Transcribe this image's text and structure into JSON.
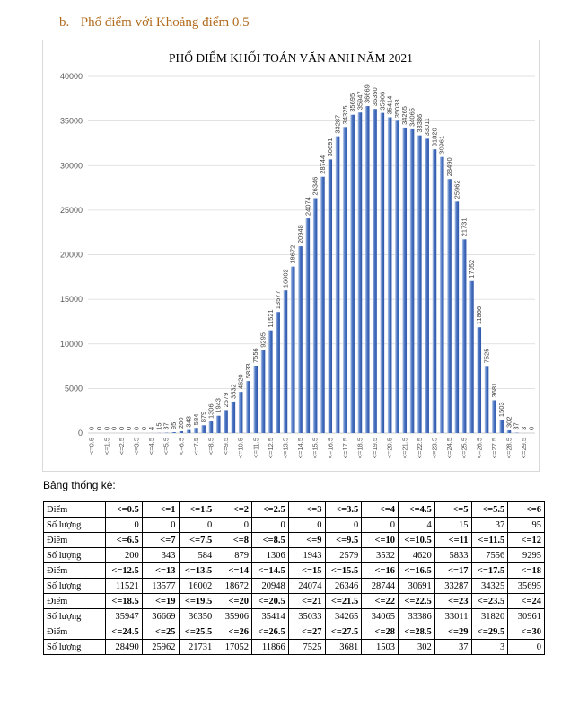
{
  "heading": {
    "number": "b.",
    "text": "Phổ điểm với Khoảng điểm 0.5"
  },
  "colors": {
    "bar": "#4a74c4",
    "bar_light": "#b8cbe8",
    "grid": "#d9d9d9",
    "heading": "#b26a1c"
  },
  "chart_data": {
    "type": "bar",
    "title": "PHỔ ĐIỂM KHỐI TOÁN VĂN ANH  NĂM 2021",
    "xlabel": "",
    "ylabel": "",
    "ylim": [
      0,
      40000
    ],
    "yticks": [
      "0",
      "5000",
      "10000",
      "15000",
      "20000",
      "25000",
      "30000",
      "35000",
      "40000"
    ],
    "categories": [
      "<=0.5",
      "<=1",
      "<=1.5",
      "<=2",
      "<=2.5",
      "<=3",
      "<=3.5",
      "<=4",
      "<=4.5",
      "<=5",
      "<=5.5",
      "<=6",
      "<=6.5",
      "<=7",
      "<=7.5",
      "<=8",
      "<=8.5",
      "<=9",
      "<=9.5",
      "<=10",
      "<=10.5",
      "<=11",
      "<=11.5",
      "<=12",
      "<=12.5",
      "<=13",
      "<=13.5",
      "<=14",
      "<=14.5",
      "<=15",
      "<=15.5",
      "<=16",
      "<=16.5",
      "<=17",
      "<=17.5",
      "<=18",
      "<=18.5",
      "<=19",
      "<=19.5",
      "<=20",
      "<=20.5",
      "<=21",
      "<=21.5",
      "<=22",
      "<=22.5",
      "<=23",
      "<=23.5",
      "<=24",
      "<=24.5",
      "<=25",
      "<=25.5",
      "<=26",
      "<=26.5",
      "<=27",
      "<=27.5",
      "<=28",
      "<=28.5",
      "<=29",
      "<=29.5",
      "<=30"
    ],
    "values": [
      0,
      0,
      0,
      0,
      0,
      0,
      0,
      0,
      4,
      15,
      37,
      95,
      200,
      343,
      584,
      879,
      1306,
      1943,
      2579,
      3532,
      4620,
      5833,
      7556,
      9295,
      11521,
      13577,
      16002,
      18672,
      20948,
      24074,
      26346,
      28744,
      30691,
      33287,
      34325,
      35695,
      35947,
      36669,
      36350,
      35906,
      35414,
      35033,
      34265,
      34065,
      33386,
      33011,
      31820,
      30961,
      28490,
      25962,
      21731,
      17052,
      11866,
      7525,
      3681,
      1503,
      302,
      37,
      3,
      0
    ],
    "xticks": [
      "<=0.5",
      "<=1.5",
      "<=2.5",
      "<=3.5",
      "<=4.5",
      "<=5.5",
      "<=6.5",
      "<=7.5",
      "<=8.5",
      "<=9.5",
      "<=10.5",
      "<=11.5",
      "<=12.5",
      "<=13.5",
      "<=14.5",
      "<=15.5",
      "<=16.5",
      "<=17.5",
      "<=18.5",
      "<=19.5",
      "<=20.5",
      "<=21.5",
      "<=22.5",
      "<=23.5",
      "<=24.5",
      "<=25.5",
      "<=26.5",
      "<=27.5",
      "<=28.5",
      "<=29.5"
    ]
  },
  "stats": {
    "title": "Bảng thống kê:",
    "header_label": "Điểm",
    "count_label": "Số lượng",
    "rows": [
      {
        "scores": [
          "<=0.5",
          "<=1",
          "<=1.5",
          "<=2",
          "<=2.5",
          "<=3",
          "<=3.5",
          "<=4",
          "<=4.5",
          "<=5",
          "<=5.5",
          "<=6"
        ],
        "counts": [
          "0",
          "0",
          "0",
          "0",
          "0",
          "0",
          "0",
          "0",
          "4",
          "15",
          "37",
          "95"
        ]
      },
      {
        "scores": [
          "<=6.5",
          "<=7",
          "<=7.5",
          "<=8",
          "<=8.5",
          "<=9",
          "<=9.5",
          "<=10",
          "<=10.5",
          "<=11",
          "<=11.5",
          "<=12"
        ],
        "counts": [
          "200",
          "343",
          "584",
          "879",
          "1306",
          "1943",
          "2579",
          "3532",
          "4620",
          "5833",
          "7556",
          "9295"
        ]
      },
      {
        "scores": [
          "<=12.5",
          "<=13",
          "<=13.5",
          "<=14",
          "<=14.5",
          "<=15",
          "<=15.5",
          "<=16",
          "<=16.5",
          "<=17",
          "<=17.5",
          "<=18"
        ],
        "counts": [
          "11521",
          "13577",
          "16002",
          "18672",
          "20948",
          "24074",
          "26346",
          "28744",
          "30691",
          "33287",
          "34325",
          "35695"
        ]
      },
      {
        "scores": [
          "<=18.5",
          "<=19",
          "<=19.5",
          "<=20",
          "<=20.5",
          "<=21",
          "<=21.5",
          "<=22",
          "<=22.5",
          "<=23",
          "<=23.5",
          "<=24"
        ],
        "counts": [
          "35947",
          "36669",
          "36350",
          "35906",
          "35414",
          "35033",
          "34265",
          "34065",
          "33386",
          "33011",
          "31820",
          "30961"
        ]
      },
      {
        "scores": [
          "<=24.5",
          "<=25",
          "<=25.5",
          "<=26",
          "<=26.5",
          "<=27",
          "<=27.5",
          "<=28",
          "<=28.5",
          "<=29",
          "<=29.5",
          "<=30"
        ],
        "counts": [
          "28490",
          "25962",
          "21731",
          "17052",
          "11866",
          "7525",
          "3681",
          "1503",
          "302",
          "37",
          "3",
          "0"
        ]
      }
    ]
  }
}
